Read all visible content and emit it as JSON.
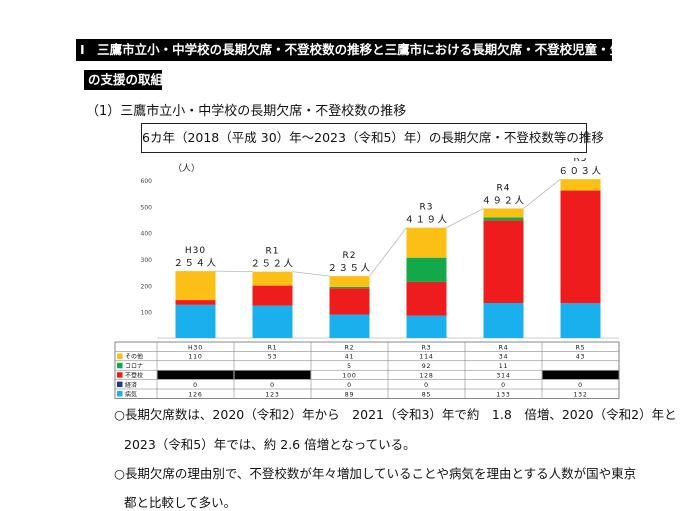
{
  "header": {
    "line1": "Ⅰ　三鷹市立小・中学校の長期欠席・不登校数の推移と三鷹市における長期欠席・不登校児童・生徒へ",
    "line2": "の支援の取組"
  },
  "subheading": "（1）三鷹市立小・中学校の長期欠席・不登校数の推移",
  "chart_data": {
    "type": "bar",
    "title": "6カ年（2018（平成 30）年〜2023（令和5）年）の長期欠席・不登校数等の推移",
    "ylabel": "（人）",
    "ylim": [
      0,
      600
    ],
    "yticks": [
      100,
      200,
      300,
      400,
      500,
      600
    ],
    "categories": [
      "H30",
      "R1",
      "R2",
      "R3",
      "R4",
      "R5"
    ],
    "totals": [
      254,
      252,
      235,
      419,
      492,
      603
    ],
    "total_labels": [
      "２５４人",
      "２５２人",
      "２３５人",
      "４１９人",
      "４９２人",
      "６０３人"
    ],
    "series": [
      {
        "name": "病気",
        "color": "#1ab0ee",
        "values": [
          126,
          123,
          89,
          85,
          133,
          132
        ],
        "labels": [
          "126",
          "123",
          "89",
          "85",
          "133",
          "132"
        ]
      },
      {
        "name": "経済",
        "color": "#1f3c86",
        "values": [
          0,
          0,
          0,
          0,
          0,
          0
        ],
        "labels": [
          "0",
          "0",
          "0",
          "0",
          "0",
          "0"
        ]
      },
      {
        "name": "不登校",
        "color": "#ee1c1c",
        "values": [
          18,
          76,
          100,
          128,
          314,
          428
        ],
        "labels": [
          "18",
          "76",
          "100",
          "128",
          "314",
          "428"
        ]
      },
      {
        "name": "コロナ",
        "color": "#13a84a",
        "values": [
          0,
          0,
          5,
          92,
          11,
          0
        ],
        "labels": [
          "",
          "",
          "5",
          "92",
          "11",
          ""
        ]
      },
      {
        "name": "その他",
        "color": "#fbbf16",
        "values": [
          110,
          53,
          41,
          114,
          34,
          43
        ],
        "labels": [
          "110",
          "53",
          "41",
          "114",
          "34",
          "43"
        ]
      }
    ],
    "blackout_cells": [
      [
        3,
        0
      ],
      [
        3,
        1
      ],
      [
        3,
        5
      ]
    ]
  },
  "notes": [
    "○長期欠席数は、2020（令和2）年から　2021（令和3）年で約　1.8　倍増、2020（令和2）年と",
    "2023（令和5）年では、約 2.6 倍増となっている。",
    "○長期欠席の理由別で、不登校数が年々増加していることや病気を理由とする人数が国や東京",
    "都と比較して多い。"
  ]
}
